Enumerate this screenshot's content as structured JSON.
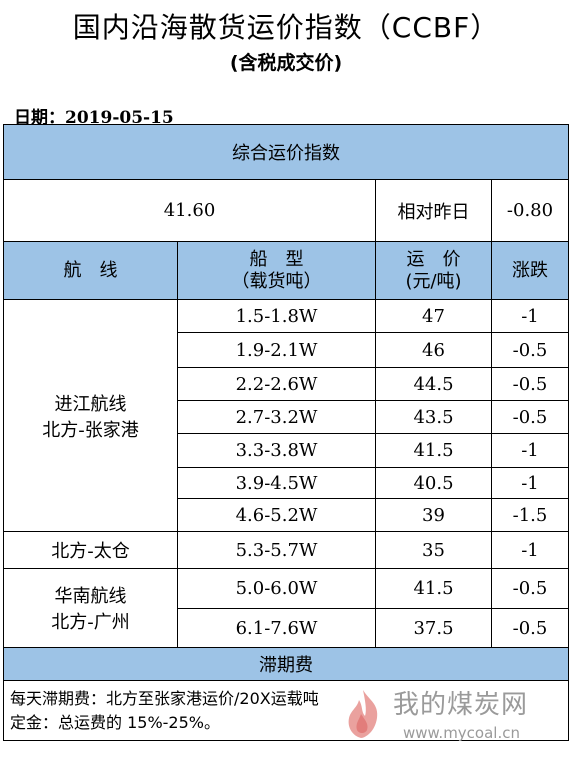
{
  "header": {
    "title": "国内沿海散货运价指数（CCBF）",
    "subtitle": "(含税成交价)",
    "date": "日期：2019-05-15"
  },
  "summary": {
    "section_title": "综合运价指数",
    "index_value": "41.60",
    "compare_label": "相对昨日",
    "compare_value": "-0.80"
  },
  "columns": {
    "route": "航　线",
    "ship_type_line1": "船　型",
    "ship_type_line2": "（载货吨）",
    "freight_line1": "运　价",
    "freight_line2": "(元/吨)",
    "change": "涨跌"
  },
  "groups": [
    {
      "route_line1": "进江航线",
      "route_line2": "北方-张家港",
      "rows": [
        {
          "ship": "1.5-1.8W",
          "price": "47",
          "change": "-1"
        },
        {
          "ship": "1.9-2.1W",
          "price": "46",
          "change": "-0.5"
        },
        {
          "ship": "2.2-2.6W",
          "price": "44.5",
          "change": "-0.5"
        },
        {
          "ship": "2.7-3.2W",
          "price": "43.5",
          "change": "-0.5"
        },
        {
          "ship": "3.3-3.8W",
          "price": "41.5",
          "change": "-1"
        },
        {
          "ship": "3.9-4.5W",
          "price": "40.5",
          "change": "-1"
        },
        {
          "ship": "4.6-5.2W",
          "price": "39",
          "change": "-1.5"
        }
      ]
    },
    {
      "route_line1": "北方-太仓",
      "route_line2": "",
      "rows": [
        {
          "ship": "5.3-5.7W",
          "price": "35",
          "change": "-1"
        }
      ]
    },
    {
      "route_line1": "华南航线",
      "route_line2": "北方-广州",
      "rows": [
        {
          "ship": "5.0-6.0W",
          "price": "41.5",
          "change": "-0.5"
        },
        {
          "ship": "6.1-7.6W",
          "price": "37.5",
          "change": "-0.5"
        }
      ]
    }
  ],
  "demurrage": {
    "section_title": "滞期费",
    "line1": "每天滞期费：北方至张家港运价/20X运载吨",
    "line2": "定金：总运费的 15%-25%。"
  },
  "watermark": {
    "brand": "我的煤炭网",
    "url": "www.mycoal.cn",
    "color": "#9a9a9a",
    "flame_color": "#d9534f"
  }
}
